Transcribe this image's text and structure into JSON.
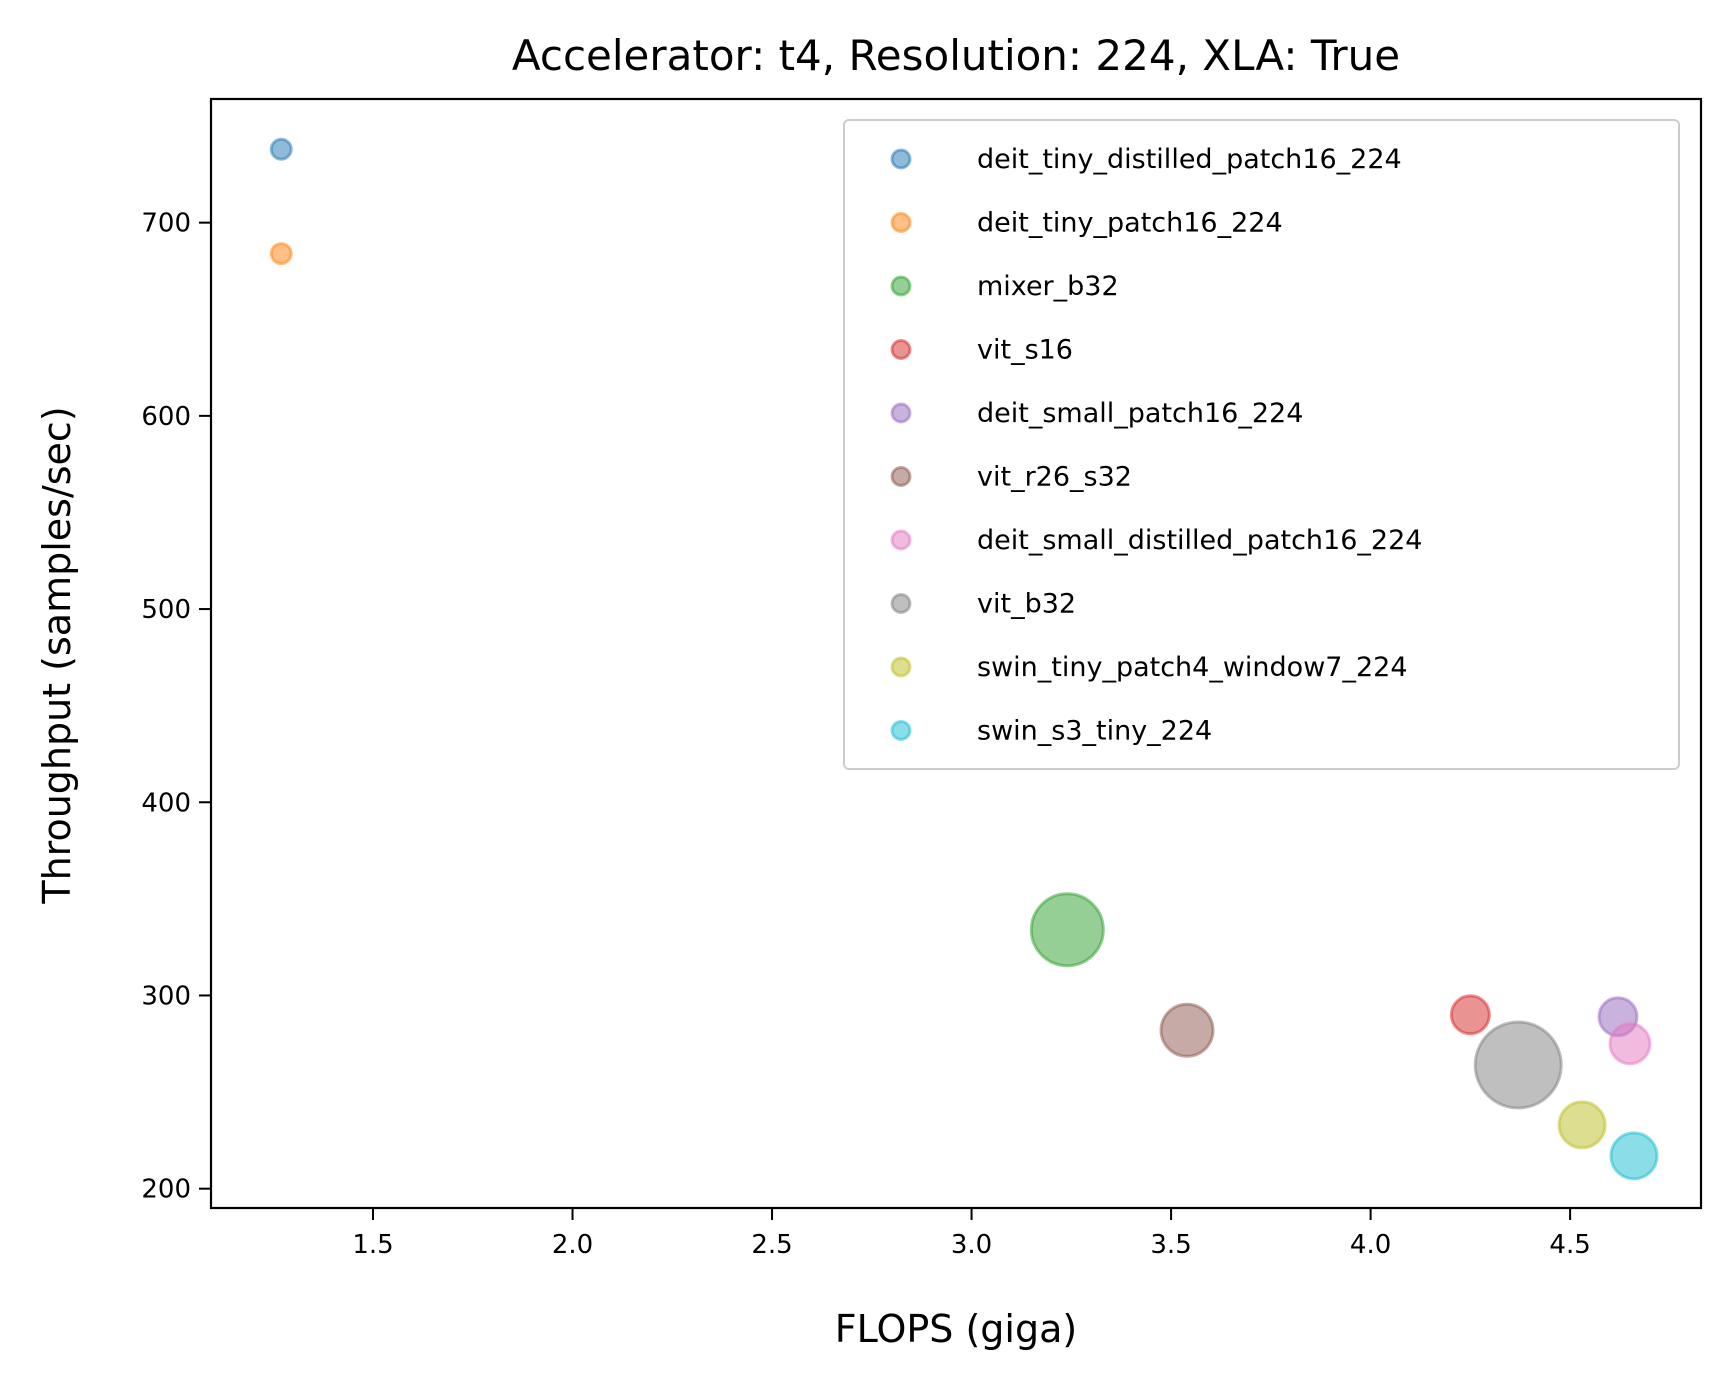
{
  "chart_data": {
    "type": "scatter",
    "title": "Accelerator: t4, Resolution: 224, XLA: True",
    "xlabel": "FLOPS (giga)",
    "ylabel": "Throughput (samples/sec)",
    "xlim": [
      1.094,
      4.828
    ],
    "ylim": [
      190,
      764
    ],
    "xticks": [
      1.5,
      2.0,
      2.5,
      3.0,
      3.5,
      4.0,
      4.5
    ],
    "xtick_labels": [
      "1.5",
      "2.0",
      "2.5",
      "3.0",
      "3.5",
      "4.0",
      "4.5"
    ],
    "yticks": [
      200,
      300,
      400,
      500,
      600,
      700
    ],
    "ytick_labels": [
      "200",
      "300",
      "400",
      "500",
      "600",
      "700"
    ],
    "grid": false,
    "legend_position": "top-right",
    "marker_alpha": 0.5,
    "series": [
      {
        "name": "deit_tiny_distilled_patch16_224",
        "x": 1.27,
        "y": 738,
        "size": 10,
        "color": "#1f77b4"
      },
      {
        "name": "deit_tiny_patch16_224",
        "x": 1.27,
        "y": 684,
        "size": 10,
        "color": "#ff7f0e"
      },
      {
        "name": "mixer_b32",
        "x": 3.24,
        "y": 334,
        "size": 36,
        "color": "#2ca02c"
      },
      {
        "name": "vit_s16",
        "x": 4.25,
        "y": 290,
        "size": 19,
        "color": "#d62728"
      },
      {
        "name": "deit_small_patch16_224",
        "x": 4.62,
        "y": 289,
        "size": 19,
        "color": "#9467bd"
      },
      {
        "name": "vit_r26_s32",
        "x": 3.54,
        "y": 282,
        "size": 26,
        "color": "#8c564b"
      },
      {
        "name": "deit_small_distilled_patch16_224",
        "x": 4.65,
        "y": 275,
        "size": 20,
        "color": "#e377c2"
      },
      {
        "name": "vit_b32",
        "x": 4.37,
        "y": 264,
        "size": 43,
        "color": "#7f7f7f"
      },
      {
        "name": "swin_tiny_patch4_window7_224",
        "x": 4.53,
        "y": 233,
        "size": 23,
        "color": "#bcbd22"
      },
      {
        "name": "swin_s3_tiny_224",
        "x": 4.66,
        "y": 217,
        "size": 23,
        "color": "#17becf"
      }
    ]
  }
}
